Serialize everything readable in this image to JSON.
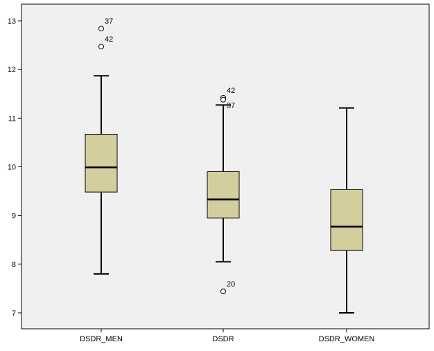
{
  "colors": {
    "plot_background": "#f0f0f0",
    "box_fill": "#d3ce9e",
    "stroke": "#000000",
    "page_background": "#ffffff"
  },
  "chart_data": {
    "type": "boxplot",
    "title": "",
    "xlabel": "",
    "ylabel": "",
    "ylim": [
      6.8,
      13.3
    ],
    "yticks": [
      7,
      8,
      9,
      10,
      11,
      12,
      13
    ],
    "grid": false,
    "categories": [
      "DSDR_MEN",
      "DSDR",
      "DSDR_WOMEN"
    ],
    "boxes": [
      {
        "category": "DSDR_MEN",
        "whisker_low": 7.8,
        "q1": 9.48,
        "median": 9.99,
        "q3": 10.67,
        "whisker_high": 11.87,
        "outliers": [
          {
            "value": 12.84,
            "label": "37"
          },
          {
            "value": 12.47,
            "label": "42"
          }
        ]
      },
      {
        "category": "DSDR",
        "whisker_low": 8.05,
        "q1": 8.95,
        "median": 9.33,
        "q3": 9.9,
        "whisker_high": 11.27,
        "outliers": [
          {
            "value": 11.42,
            "label": "42"
          },
          {
            "value": 11.38,
            "label": "37"
          },
          {
            "value": 7.44,
            "label": "20"
          }
        ]
      },
      {
        "category": "DSDR_WOMEN",
        "whisker_low": 7.0,
        "q1": 8.28,
        "median": 8.77,
        "q3": 9.53,
        "whisker_high": 11.21,
        "outliers": []
      }
    ]
  }
}
